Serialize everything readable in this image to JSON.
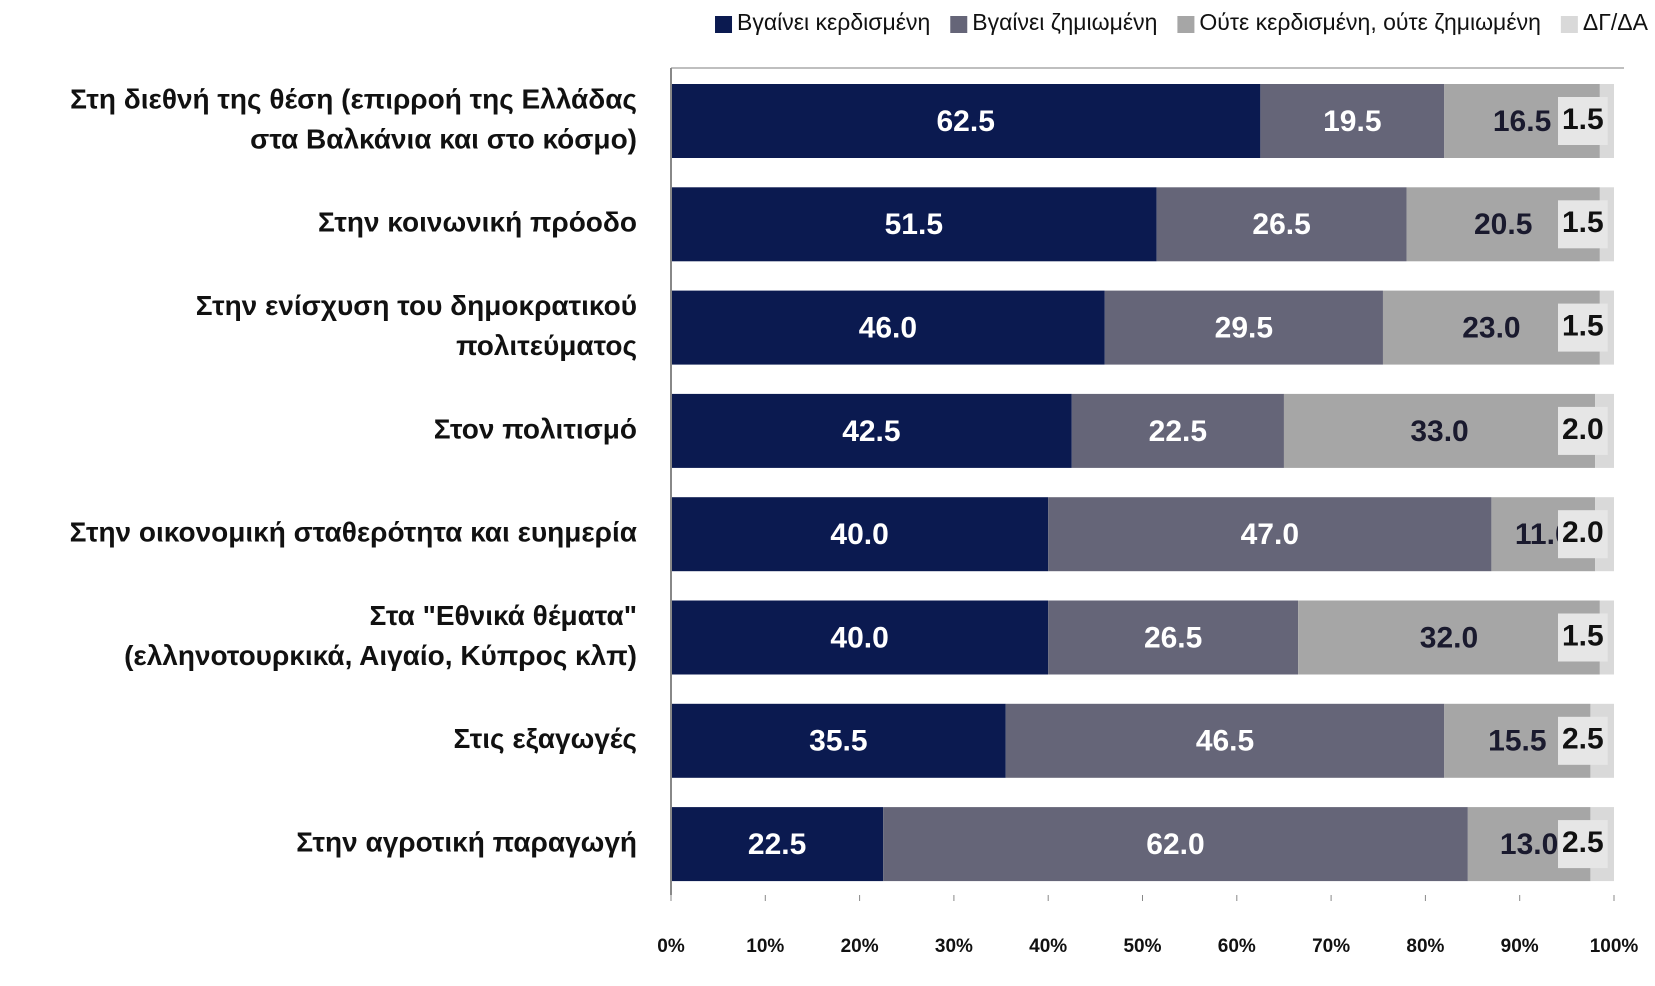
{
  "chart_data": {
    "type": "stacked-bar-horizontal",
    "categories": [
      [
        "Στη διεθνή της θέση (επιρροή της Ελλάδας",
        "στα Βαλκάνια και στο κόσμο)"
      ],
      [
        "Στην κοινωνική πρόοδο"
      ],
      [
        "Στην ενίσχυση του δημοκρατικού",
        "πολιτεύματος"
      ],
      [
        "Στον πολιτισμό"
      ],
      [
        "Στην οικονομική σταθερότητα και ευημερία"
      ],
      [
        "Στα \"Εθνικά θέματα\"",
        "(ελληνοτουρκικά, Αιγαίο, Κύπρος κλπ)"
      ],
      [
        "Στις εξαγωγές"
      ],
      [
        "Στην αγροτική παραγωγή"
      ]
    ],
    "series": [
      {
        "name": "Βγαίνει κερδισμένη",
        "color": "#0b1a50",
        "label_color": "#ffffff",
        "values": [
          62.5,
          51.5,
          46,
          42.5,
          40,
          40,
          35.5,
          22.5
        ],
        "value_labels": [
          "62.5",
          "51.5",
          "46.0",
          "42.5",
          "40.0",
          "40.0",
          "35.5",
          "22.5"
        ]
      },
      {
        "name": "Βγαίνει ζημιωμένη",
        "color": "#656578",
        "label_color": "#ffffff",
        "values": [
          19.5,
          26.5,
          29.5,
          22.5,
          47,
          26.5,
          46.5,
          62
        ],
        "value_labels": [
          "19.5",
          "26.5",
          "29.5",
          "22.5",
          "47.0",
          "26.5",
          "46.5",
          "62.0"
        ]
      },
      {
        "name": "Ούτε κερδισμένη, ούτε ζημιωμένη",
        "color": "#a6a6a6",
        "label_color": "#1a1a2e",
        "values": [
          16.5,
          20.5,
          23,
          33,
          11,
          32,
          15.5,
          13
        ],
        "value_labels": [
          "16.5",
          "20.5",
          "23.0",
          "33.0",
          "11.0",
          "32.0",
          "15.5",
          "13.0"
        ]
      },
      {
        "name": "ΔΓ/ΔΑ",
        "color": "#d9d9d9",
        "label_color": "#111111",
        "values": [
          1.5,
          1.5,
          1.5,
          2,
          2,
          1.5,
          2.5,
          2.5
        ],
        "value_labels": [
          "1.5",
          "1.5",
          "1.5",
          "2.0",
          "2.0",
          "1.5",
          "2.5",
          "2.5"
        ]
      }
    ],
    "xlim": [
      0,
      100
    ],
    "xticks": [
      {
        "value": 0,
        "label": "0%"
      },
      {
        "value": 10,
        "label": "10%"
      },
      {
        "value": 20,
        "label": "20%"
      },
      {
        "value": 30,
        "label": "30%"
      },
      {
        "value": 40,
        "label": "40%"
      },
      {
        "value": 50,
        "label": "50%"
      },
      {
        "value": 60,
        "label": "60%"
      },
      {
        "value": 70,
        "label": "70%"
      },
      {
        "value": 80,
        "label": "80%"
      },
      {
        "value": 90,
        "label": "90%"
      },
      {
        "value": 100,
        "label": "100%"
      }
    ]
  }
}
